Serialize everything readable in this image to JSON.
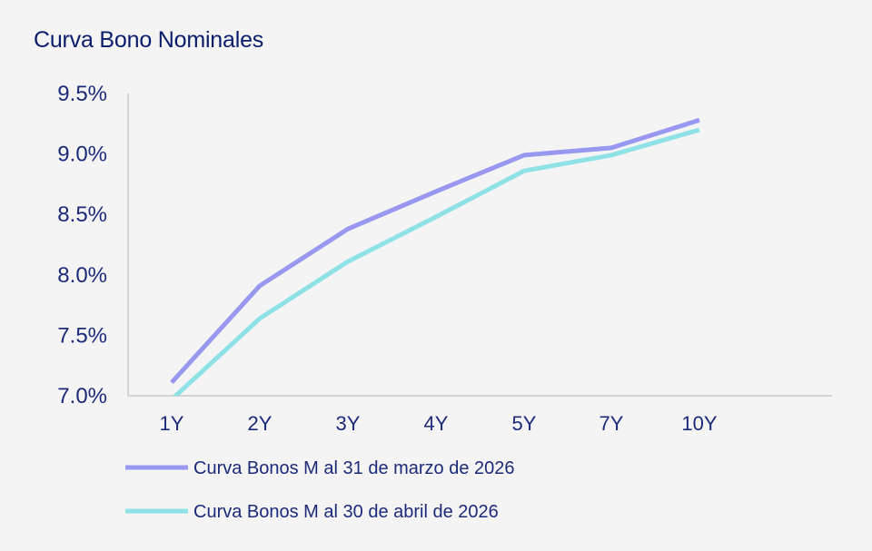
{
  "chart_data": {
    "type": "line",
    "title": "Curva Bono Nominales",
    "xlabel": "",
    "ylabel": "",
    "categories": [
      "1Y",
      "2Y",
      "3Y",
      "4Y",
      "5Y",
      "7Y",
      "10Y"
    ],
    "ylim": [
      7.0,
      9.5
    ],
    "yticks": [
      "7.0%",
      "7.5%",
      "8.0%",
      "8.5%",
      "9.0%",
      "9.5%"
    ],
    "ytick_values": [
      7.0,
      7.5,
      8.0,
      8.5,
      9.0,
      9.5
    ],
    "grid": false,
    "legend_position": "bottom-left",
    "series": [
      {
        "name": "Curva Bonos M al 31 de marzo de 2026",
        "color": "#9898f0",
        "values": [
          7.11,
          7.91,
          8.38,
          8.69,
          8.99,
          9.05,
          9.28
        ]
      },
      {
        "name": "Curva Bonos M al 30 de abril de 2026",
        "color": "#8ee2e6",
        "values": [
          6.97,
          7.64,
          8.11,
          8.48,
          8.86,
          8.99,
          9.2
        ]
      }
    ]
  }
}
